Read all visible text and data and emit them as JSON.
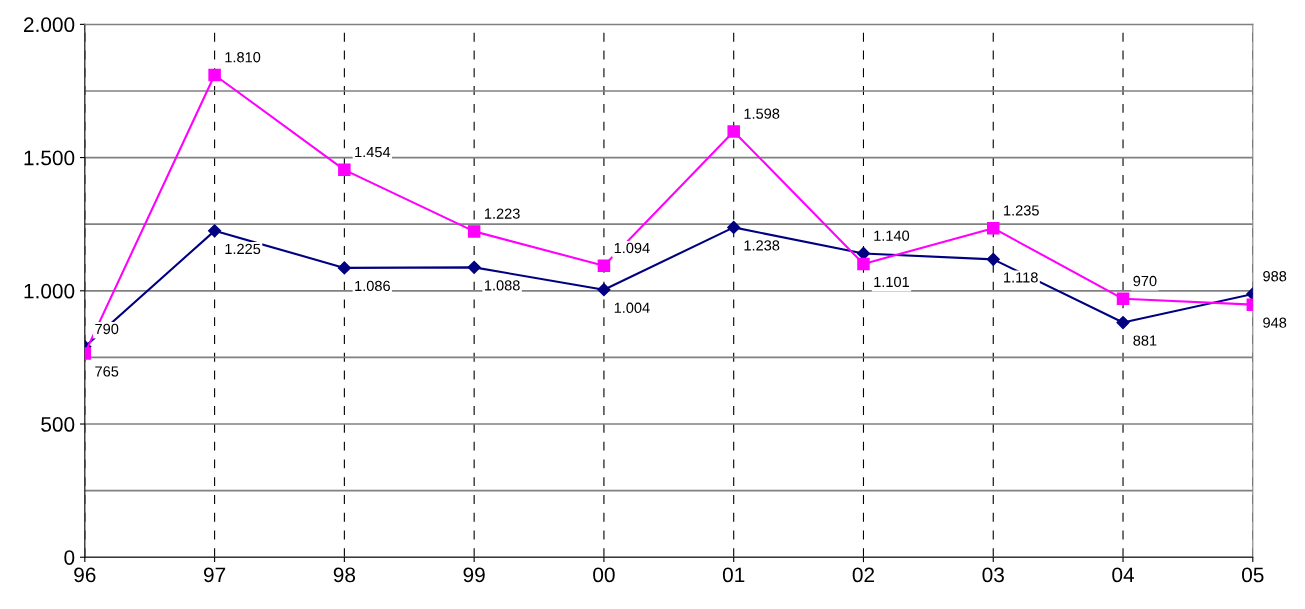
{
  "chart_data": {
    "type": "line",
    "categories": [
      "96",
      "97",
      "98",
      "99",
      "00",
      "01",
      "02",
      "03",
      "04",
      "05"
    ],
    "series": [
      {
        "color": "#000080",
        "marker": "diamond",
        "values": [
          790,
          1225,
          1086,
          1088,
          1004,
          1238,
          1140,
          1118,
          881,
          988
        ],
        "value_labels": [
          "790",
          "1.225",
          "1.086",
          "1.088",
          "1.004",
          "1.238",
          "1.140",
          "1.118",
          "881",
          "988"
        ]
      },
      {
        "color": "#ff00ff",
        "marker": "square",
        "values": [
          765,
          1810,
          1454,
          1223,
          1094,
          1598,
          1101,
          1235,
          970,
          948
        ],
        "value_labels": [
          "765",
          "1.810",
          "1.454",
          "1.223",
          "1.094",
          "1.598",
          "1.101",
          "1.235",
          "970",
          "948"
        ]
      }
    ],
    "ylim": [
      0,
      2000
    ],
    "yticks": [
      0,
      {
        "value": 250,
        "label": null
      },
      {
        "value": 500,
        "label": "500"
      },
      {
        "value": 750,
        "label": null
      },
      {
        "value": 1000,
        "label": "1.000"
      },
      {
        "value": 1250,
        "label": null
      },
      {
        "value": 1500,
        "label": "1.500"
      },
      {
        "value": 1750,
        "label": null
      },
      {
        "value": 2000,
        "label": "2.000"
      }
    ],
    "grid": true,
    "legend": false
  }
}
